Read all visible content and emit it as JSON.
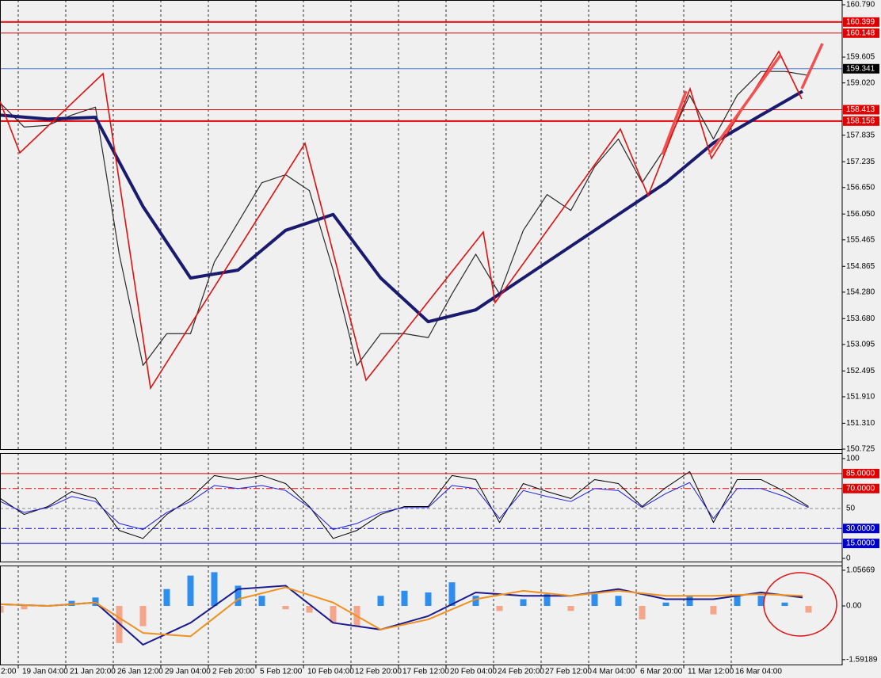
{
  "chart_data": [
    {
      "type": "line",
      "xlim": [
        -6.13,
        277.33
      ],
      "ylim": [
        150.707,
        160.898
      ],
      "yticks": [
        {
          "value": 160.79,
          "label": "160.790"
        },
        {
          "value": 159.605,
          "label": "159.605"
        },
        {
          "value": 159.02,
          "label": "159.020"
        },
        {
          "value": 157.835,
          "label": "157.835"
        },
        {
          "value": 157.235,
          "label": "157.235"
        },
        {
          "value": 156.65,
          "label": "156.650"
        },
        {
          "value": 156.05,
          "label": "156.050"
        },
        {
          "value": 155.465,
          "label": "155.465"
        },
        {
          "value": 154.865,
          "label": "154.865"
        },
        {
          "value": 154.28,
          "label": "154.280"
        },
        {
          "value": 153.68,
          "label": "153.680"
        },
        {
          "value": 153.095,
          "label": "153.095"
        },
        {
          "value": 152.495,
          "label": "152.495"
        },
        {
          "value": 151.91,
          "label": "151.910"
        },
        {
          "value": 151.31,
          "label": "151.310"
        },
        {
          "value": 150.725,
          "label": "150.725"
        }
      ],
      "levels": [
        {
          "value": 160.399,
          "label": "160.399",
          "color": "#e00000",
          "width": 2,
          "style": "solid",
          "label_bg": "#e00000"
        },
        {
          "value": 160.148,
          "label": "160.148",
          "color": "#e00000",
          "width": 1,
          "style": "solid",
          "label_bg": "#e00000"
        },
        {
          "value": 159.341,
          "label": "159.341",
          "color": "#4a7bd0",
          "width": 1,
          "style": "solid",
          "label_bg": "#000000"
        },
        {
          "value": 158.413,
          "label": "158.413",
          "color": "#e00000",
          "width": 1,
          "style": "solid",
          "label_bg": "#e00000"
        },
        {
          "value": 158.156,
          "label": "158.156",
          "color": "#e00000",
          "width": 2,
          "style": "solid",
          "label_bg": "#e00000"
        }
      ],
      "series": [
        {
          "type": "line",
          "color": "#2a2a2a",
          "width": 1.2,
          "x": [
            -6,
            2,
            10,
            18,
            26,
            34,
            42,
            50,
            58,
            66,
            74,
            82,
            90,
            98,
            106,
            114,
            122,
            130,
            138,
            146,
            154,
            162,
            170,
            178,
            186,
            194,
            202,
            210,
            218,
            226,
            234,
            242,
            250,
            258,
            266
          ],
          "values": [
            158.56,
            158.02,
            158.06,
            158.29,
            158.47,
            155.14,
            152.62,
            153.34,
            153.34,
            154.96,
            155.86,
            156.76,
            156.94,
            156.58,
            154.78,
            152.62,
            153.34,
            153.34,
            153.25,
            154.24,
            155.14,
            154.24,
            155.68,
            156.49,
            156.13,
            157.12,
            157.75,
            156.76,
            157.57,
            158.74,
            157.75,
            158.74,
            159.28,
            159.28,
            159.19
          ]
        },
        {
          "type": "line",
          "color": "#1a1a6e",
          "width": 4,
          "x": [
            -6,
            10,
            26,
            42,
            58,
            74,
            90,
            106,
            122,
            138,
            154,
            170,
            186,
            202,
            218,
            234,
            250,
            264
          ],
          "values": [
            158.29,
            158.2,
            158.24,
            156.22,
            154.6,
            154.78,
            155.68,
            156.04,
            154.6,
            153.61,
            153.88,
            154.6,
            155.32,
            156.04,
            156.76,
            157.66,
            158.29,
            158.83
          ]
        }
      ]
    },
    {
      "type": "line",
      "xlim": [
        -6.13,
        277.33
      ],
      "ylim": [
        -3.97,
        105.56
      ],
      "yticks": [
        100,
        0
      ],
      "levels": [
        {
          "value": 85,
          "label": "85.0000",
          "color": "#e00000",
          "width": 1,
          "style": "solid",
          "label_bg": "#e00000"
        },
        {
          "value": 70,
          "label": "70.0000",
          "color": "#e00000",
          "width": 1,
          "style": "dashdot",
          "label_bg": "#e00000"
        },
        {
          "value": 50,
          "label": "50",
          "color": "#888888",
          "width": 1,
          "style": "dash"
        },
        {
          "value": 30,
          "label": "30.0000",
          "color": "#0000c8",
          "width": 1,
          "style": "dashdot",
          "label_bg": "#0000c8"
        },
        {
          "value": 15,
          "label": "15.0000",
          "color": "#0000c8",
          "width": 1,
          "style": "solid",
          "label_bg": "#0000c8"
        }
      ],
      "series": [
        {
          "type": "line",
          "color": "#000000",
          "width": 1,
          "x": [
            -6,
            2,
            10,
            18,
            26,
            34,
            42,
            50,
            58,
            66,
            74,
            82,
            90,
            98,
            106,
            114,
            122,
            130,
            138,
            146,
            154,
            162,
            170,
            178,
            186,
            194,
            202,
            210,
            218,
            226,
            234,
            242,
            250,
            258,
            266
          ],
          "values": [
            60,
            44,
            52,
            67,
            60,
            28,
            20,
            44,
            60,
            83,
            79,
            83,
            75,
            52,
            20,
            28,
            44,
            52,
            52,
            83,
            79,
            36,
            75,
            67,
            60,
            79,
            75,
            52,
            71,
            87,
            36,
            79,
            79,
            67,
            52
          ]
        },
        {
          "type": "line",
          "color": "#2020e0",
          "width": 1,
          "x": [
            -6,
            2,
            10,
            18,
            26,
            34,
            42,
            50,
            58,
            66,
            74,
            82,
            90,
            98,
            106,
            114,
            122,
            130,
            138,
            146,
            154,
            162,
            170,
            178,
            186,
            194,
            202,
            210,
            218,
            226,
            234,
            242,
            250,
            258,
            266
          ],
          "values": [
            57,
            46,
            51,
            62,
            57,
            35,
            29,
            46,
            57,
            73,
            70,
            73,
            68,
            51,
            29,
            35,
            46,
            51,
            51,
            73,
            70,
            40,
            68,
            62,
            57,
            70,
            68,
            51,
            65,
            76,
            40,
            70,
            70,
            62,
            51
          ]
        }
      ]
    },
    {
      "type": "line",
      "xlim": [
        -6.13,
        277.33
      ],
      "ylim": [
        -1.76,
        1.197
      ],
      "yticks": [
        {
          "value": 1.05669,
          "label": "1.05669"
        },
        {
          "value": 0,
          "label": "0.00"
        },
        {
          "value": -1.59189,
          "label": "-1.59189"
        }
      ],
      "xticks": [
        {
          "value": -16,
          "label": "2:00"
        },
        {
          "value": 0,
          "label": "19 Jan 04:00"
        },
        {
          "value": 16,
          "label": "21 Jan 20:00"
        },
        {
          "value": 32,
          "label": "26 Jan 12:00"
        },
        {
          "value": 48,
          "label": "29 Jan 04:00"
        },
        {
          "value": 64,
          "label": "2 Feb 20:00"
        },
        {
          "value": 80,
          "label": "5 Feb 12:00"
        },
        {
          "value": 96,
          "label": "10 Feb 04:00"
        },
        {
          "value": 112,
          "label": "12 Feb 20:00"
        },
        {
          "value": 128,
          "label": "17 Feb 12:00"
        },
        {
          "value": 144,
          "label": "20 Feb 04:00"
        },
        {
          "value": 160,
          "label": "24 Feb 20:00"
        },
        {
          "value": 176,
          "label": "27 Feb 12:00"
        },
        {
          "value": 192,
          "label": "4 Mar 04:00"
        },
        {
          "value": 208,
          "label": "6 Mar 20:00"
        },
        {
          "value": 224,
          "label": "11 Mar 12:00"
        },
        {
          "value": 240,
          "label": "16 Mar 04:00"
        }
      ],
      "series": [
        {
          "type": "bar",
          "color": "#2e8ef0",
          "negative_color": "#f4a58a",
          "x": [
            -6,
            2,
            10,
            18,
            26,
            34,
            42,
            50,
            58,
            66,
            74,
            82,
            90,
            98,
            106,
            114,
            122,
            130,
            138,
            146,
            154,
            162,
            170,
            178,
            186,
            194,
            202,
            210,
            218,
            226,
            234,
            242,
            250,
            258,
            266
          ],
          "values": [
            -0.2,
            -0.1,
            0,
            0.15,
            0.25,
            -1.1,
            -0.6,
            0.5,
            0.9,
            1.0,
            0.6,
            0.3,
            -0.1,
            -0.2,
            -0.5,
            -0.6,
            0.3,
            0.45,
            0.4,
            0.7,
            0.3,
            -0.15,
            0.2,
            0.35,
            -0.15,
            0.35,
            0.3,
            -0.4,
            0.1,
            0.3,
            -0.25,
            0.3,
            0.3,
            0.1,
            -0.2
          ]
        },
        {
          "type": "line",
          "color": "#1a1a8e",
          "width": 2,
          "x": [
            -6,
            10,
            26,
            42,
            58,
            74,
            90,
            106,
            122,
            138,
            154,
            170,
            186,
            202,
            218,
            234,
            250,
            264
          ],
          "values": [
            0.05,
            0,
            0.1,
            -1.15,
            -0.5,
            0.5,
            0.6,
            -0.5,
            -0.7,
            -0.3,
            0.4,
            0.3,
            0.3,
            0.5,
            0.2,
            0.2,
            0.4,
            0.25
          ]
        },
        {
          "type": "line",
          "color": "#f0901e",
          "width": 2,
          "x": [
            -6,
            10,
            26,
            42,
            58,
            74,
            90,
            106,
            122,
            138,
            154,
            170,
            186,
            202,
            218,
            234,
            250,
            264
          ],
          "values": [
            0.05,
            0,
            0.1,
            -0.8,
            -0.9,
            0.2,
            0.55,
            0.1,
            -0.7,
            -0.4,
            0.2,
            0.45,
            0.3,
            0.45,
            0.3,
            0.3,
            0.35,
            0.3
          ]
        }
      ]
    }
  ]
}
